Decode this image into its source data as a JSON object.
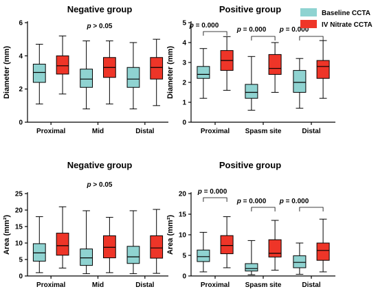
{
  "legend": {
    "items": [
      {
        "label": "Baseline CCTA",
        "color": "#8fd3d1"
      },
      {
        "label": "IV Nitrate CCTA",
        "color": "#ee3528"
      }
    ],
    "placement": "top-right"
  },
  "chart_data": [
    {
      "type": "box",
      "title": "Negative group",
      "ylabel": "Diameter (mm)",
      "ylim": [
        0,
        6
      ],
      "yticks": [
        0,
        2,
        4,
        6
      ],
      "categories": [
        "Proximal",
        "Mid",
        "Distal"
      ],
      "annotations": [
        {
          "text": "p > 0.05"
        }
      ],
      "series": [
        {
          "legend": "Baseline CCTA",
          "boxes": [
            {
              "min": 1.1,
              "q1": 2.4,
              "median": 3.0,
              "q3": 3.5,
              "max": 4.7
            },
            {
              "min": 0.8,
              "q1": 2.1,
              "median": 2.6,
              "q3": 3.2,
              "max": 4.9
            },
            {
              "min": 0.8,
              "q1": 2.1,
              "median": 2.6,
              "q3": 3.3,
              "max": 4.8
            }
          ]
        },
        {
          "legend": "IV Nitrate CCTA",
          "boxes": [
            {
              "min": 1.7,
              "q1": 2.9,
              "median": 3.4,
              "q3": 4.0,
              "max": 5.2
            },
            {
              "min": 1.1,
              "q1": 2.7,
              "median": 3.3,
              "q3": 3.9,
              "max": 4.9
            },
            {
              "min": 1.0,
              "q1": 2.6,
              "median": 3.3,
              "q3": 3.9,
              "max": 5.0
            }
          ]
        }
      ]
    },
    {
      "type": "box",
      "title": "Positive group",
      "ylabel": "Diameter (mm)",
      "ylim": [
        0,
        5
      ],
      "yticks": [
        0,
        1,
        2,
        3,
        4,
        5
      ],
      "categories": [
        "Proximal",
        "Spasm site",
        "Distal"
      ],
      "annotations": [
        {
          "text": "p = 0.000"
        },
        {
          "text": "p = 0.000"
        },
        {
          "text": "p = 0.000"
        }
      ],
      "series": [
        {
          "legend": "Baseline CCTA",
          "boxes": [
            {
              "min": 1.2,
              "q1": 2.2,
              "median": 2.4,
              "q3": 2.8,
              "max": 3.7
            },
            {
              "min": 0.6,
              "q1": 1.2,
              "median": 1.5,
              "q3": 1.9,
              "max": 3.3
            },
            {
              "min": 0.7,
              "q1": 1.5,
              "median": 2.0,
              "q3": 2.6,
              "max": 3.2
            }
          ]
        },
        {
          "legend": "IV Nitrate CCTA",
          "boxes": [
            {
              "min": 1.6,
              "q1": 2.6,
              "median": 3.1,
              "q3": 3.6,
              "max": 4.3
            },
            {
              "min": 1.5,
              "q1": 2.4,
              "median": 2.7,
              "q3": 3.4,
              "max": 4.0
            },
            {
              "min": 1.2,
              "q1": 2.2,
              "median": 2.8,
              "q3": 3.1,
              "max": 4.1
            }
          ]
        }
      ]
    },
    {
      "type": "box",
      "title": "Negative group",
      "ylabel": "Area (mm²)",
      "ylim": [
        0,
        25
      ],
      "yticks": [
        0,
        5,
        10,
        15,
        20,
        25
      ],
      "categories": [
        "Proximal",
        "Mid",
        "Distal"
      ],
      "annotations": [
        {
          "text": "p > 0.05"
        }
      ],
      "series": [
        {
          "legend": "Baseline CCTA",
          "boxes": [
            {
              "min": 1.0,
              "q1": 4.5,
              "median": 7.0,
              "q3": 9.8,
              "max": 18.0
            },
            {
              "min": 0.7,
              "q1": 3.2,
              "median": 5.5,
              "q3": 8.2,
              "max": 19.8
            },
            {
              "min": 0.7,
              "q1": 3.8,
              "median": 5.8,
              "q3": 9.0,
              "max": 19.8
            }
          ]
        },
        {
          "legend": "IV Nitrate CCTA",
          "boxes": [
            {
              "min": 2.4,
              "q1": 6.3,
              "median": 9.2,
              "q3": 13.0,
              "max": 21.0
            },
            {
              "min": 1.0,
              "q1": 5.5,
              "median": 8.7,
              "q3": 12.2,
              "max": 17.8
            },
            {
              "min": 0.8,
              "q1": 5.4,
              "median": 8.5,
              "q3": 12.2,
              "max": 20.2
            }
          ]
        }
      ]
    },
    {
      "type": "box",
      "title": "Positive group",
      "ylabel": "Area (mm²)",
      "ylim": [
        0,
        20
      ],
      "yticks": [
        0,
        5,
        10,
        15,
        20
      ],
      "categories": [
        "Proximal",
        "Spasm site",
        "Distal"
      ],
      "annotations": [
        {
          "text": "p = 0.000"
        },
        {
          "text": "p = 0.000"
        },
        {
          "text": "p = 0.000"
        }
      ],
      "series": [
        {
          "legend": "Baseline CCTA",
          "boxes": [
            {
              "min": 1.0,
              "q1": 3.5,
              "median": 4.7,
              "q3": 6.3,
              "max": 10.6
            },
            {
              "min": 0.3,
              "q1": 1.2,
              "median": 1.8,
              "q3": 3.0,
              "max": 8.6
            },
            {
              "min": 0.4,
              "q1": 2.0,
              "median": 3.3,
              "q3": 4.9,
              "max": 8.0
            }
          ]
        },
        {
          "legend": "IV Nitrate CCTA",
          "boxes": [
            {
              "min": 2.0,
              "q1": 5.4,
              "median": 7.4,
              "q3": 9.8,
              "max": 14.4
            },
            {
              "min": 1.4,
              "q1": 4.6,
              "median": 5.5,
              "q3": 8.8,
              "max": 13.5
            },
            {
              "min": 1.0,
              "q1": 3.8,
              "median": 6.2,
              "q3": 8.0,
              "max": 13.8
            }
          ]
        }
      ]
    }
  ]
}
